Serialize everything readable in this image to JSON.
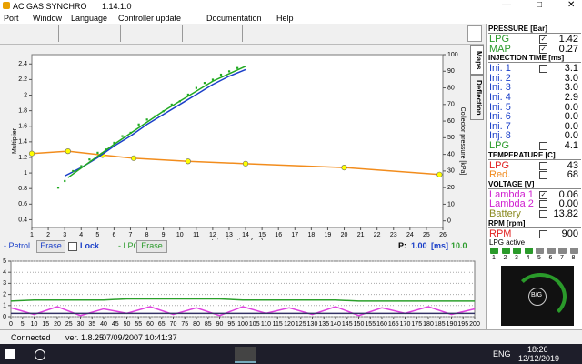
{
  "window": {
    "title": "AC GAS SYNCHRO",
    "version": "1.14.1.0"
  },
  "menu": [
    "Port",
    "Window",
    "Language",
    "Controller update",
    "Documentation",
    "Help"
  ],
  "tabs": [
    "Maps",
    "Deflection"
  ],
  "chart_data": [
    {
      "type": "line",
      "xlabel": "Injection time [ms]",
      "ylabel": "Multiplier",
      "y2label": "Collector pressure [kPa]",
      "xlim": [
        1,
        26
      ],
      "xticks": [
        1,
        2,
        3,
        4,
        5,
        6,
        7,
        8,
        9,
        10,
        11,
        12,
        13,
        14,
        15,
        16,
        17,
        18,
        19,
        20,
        21,
        22,
        23,
        24,
        25,
        26
      ],
      "ylim": [
        0.3,
        2.52
      ],
      "yticks": [
        0.4,
        0.6,
        0.8,
        1,
        1.2,
        1.4,
        1.6,
        1.8,
        2,
        2.2,
        2.4
      ],
      "y2lim": [
        -4,
        100
      ],
      "y2ticks": [
        0,
        10,
        20,
        30,
        40,
        50,
        60,
        70,
        80,
        90,
        100
      ],
      "grid": false,
      "series": [
        {
          "color": "#f28c1c",
          "marker": "#ffff00",
          "x": [
            1,
            3.2,
            5.3,
            7.2,
            10.5,
            14,
            20,
            25.8
          ],
          "values": [
            1.25,
            1.28,
            1.23,
            1.19,
            1.15,
            1.12,
            1.07,
            0.98
          ]
        },
        {
          "color": "#1a3fc8",
          "axis": "y2",
          "x": [
            3,
            4,
            5,
            6,
            7,
            8,
            9,
            10,
            11,
            12,
            13,
            14
          ],
          "values": [
            27,
            32,
            38,
            45,
            51,
            58,
            64,
            70,
            76,
            82,
            87,
            91
          ]
        },
        {
          "color": "#22aa22",
          "axis": "y2",
          "x": [
            3.2,
            6,
            9,
            12,
            14
          ],
          "values": [
            26,
            46,
            66,
            84,
            93
          ]
        },
        {
          "color": "#22aa22",
          "axis": "y2",
          "kind": "scatter",
          "x": [
            2.6,
            3,
            3.5,
            4,
            4.5,
            5,
            5.5,
            6,
            6.5,
            7,
            7.5,
            8,
            8.5,
            9,
            9.5,
            10,
            10.5,
            11,
            11.5,
            12,
            12.5,
            13,
            13.5
          ],
          "values": [
            20,
            24,
            30,
            33,
            37,
            41,
            43,
            47,
            51,
            53,
            58,
            61,
            63,
            66,
            70,
            72,
            76,
            80,
            83,
            85,
            88,
            90,
            92
          ]
        }
      ]
    },
    {
      "type": "line",
      "xlim": [
        0,
        200
      ],
      "xticks": [
        0,
        5,
        10,
        15,
        20,
        25,
        30,
        35,
        40,
        45,
        50,
        55,
        60,
        65,
        70,
        75,
        80,
        85,
        90,
        95,
        100,
        105,
        110,
        115,
        120,
        125,
        130,
        135,
        140,
        145,
        150,
        155,
        160,
        165,
        170,
        175,
        180,
        185,
        190,
        195,
        200
      ],
      "ylim": [
        0,
        5
      ],
      "yticks": [
        0,
        1,
        2,
        3,
        4,
        5
      ],
      "grid": true,
      "x": [
        0,
        10,
        20,
        30,
        40,
        50,
        60,
        70,
        80,
        90,
        100,
        110,
        120,
        130,
        140,
        150,
        160,
        170,
        180,
        190,
        200
      ],
      "series": [
        {
          "color": "#2ca02c",
          "values": [
            1.4,
            1.5,
            1.5,
            1.5,
            1.5,
            1.6,
            1.6,
            1.6,
            1.6,
            1.6,
            1.5,
            1.5,
            1.5,
            1.5,
            1.5,
            1.4,
            1.4,
            1.4,
            1.4,
            1.4,
            1.4
          ]
        },
        {
          "color": "#e040e0",
          "values": [
            0.8,
            0.2,
            0.9,
            0.1,
            0.7,
            0.3,
            0.9,
            0.2,
            0.8,
            0.1,
            0.9,
            0.3,
            0.8,
            0.2,
            0.9,
            0.1,
            0.8,
            0.3,
            0.9,
            0.2,
            0.7
          ]
        },
        {
          "color": "#333366",
          "values": [
            0.3,
            0.3,
            0.3,
            0.3,
            0.3,
            0.3,
            0.3,
            0.3,
            0.3,
            0.3,
            0.3,
            0.3,
            0.3,
            0.3,
            0.3,
            0.3,
            0.3,
            0.3,
            0.3,
            0.3,
            0.3
          ]
        }
      ]
    }
  ],
  "controls": {
    "petrol_label": "- Petrol",
    "erase_petrol": "Erase",
    "lock": "Lock",
    "lpg_label": "- LPG",
    "erase_lpg": "Erase",
    "p_label": "P:",
    "p_value": "1.00",
    "p_unit": "[ms]",
    "p_max": "10.0"
  },
  "status": {
    "state": "Connected",
    "version": "ver. 1.8.25",
    "date": "07/09/2007 10:41:37"
  },
  "panel": {
    "sections": [
      {
        "title": "PRESSURE [Bar]",
        "rows": [
          {
            "label": "LPG",
            "value": "1.42",
            "color": "#2a9a2a",
            "checked": true
          },
          {
            "label": "MAP",
            "value": "0.27",
            "color": "#2a9a2a",
            "checked": true
          }
        ]
      },
      {
        "title": "INJECTION TIME [ms]",
        "rows": [
          {
            "label": "Ini. 1",
            "value": "3.1",
            "color": "#1a3fc8",
            "checked": false
          },
          {
            "label": "Ini. 2",
            "value": "3.0",
            "color": "#1a3fc8"
          },
          {
            "label": "Ini. 3",
            "value": "3.0",
            "color": "#1a3fc8"
          },
          {
            "label": "Ini. 4",
            "value": "2.9",
            "color": "#1a3fc8"
          },
          {
            "label": "Ini. 5",
            "value": "0.0",
            "color": "#1a3fc8"
          },
          {
            "label": "Ini. 6",
            "value": "0.0",
            "color": "#1a3fc8"
          },
          {
            "label": "Ini. 7",
            "value": "0.0",
            "color": "#1a3fc8"
          },
          {
            "label": "Inj. 8",
            "value": "0.0",
            "color": "#1a3fc8"
          },
          {
            "label": "LPG",
            "value": "4.1",
            "color": "#2a9a2a",
            "checked": false
          }
        ]
      },
      {
        "title": "TEMPERATURE [C]",
        "rows": [
          {
            "label": "LPG",
            "value": "43",
            "color": "#e02020",
            "checked": false
          },
          {
            "label": "Red.",
            "value": "68",
            "color": "#f08a1c",
            "checked": false
          }
        ]
      },
      {
        "title": "VOLTAGE [V]",
        "rows": [
          {
            "label": "Lambda 1",
            "value": "0.06",
            "color": "#d020d0",
            "checked": true
          },
          {
            "label": "Lambda 2",
            "value": "0.00",
            "color": "#d020d0",
            "checked": false
          },
          {
            "label": "Battery",
            "value": "13.82",
            "color": "#8a8a20",
            "checked": false
          }
        ]
      },
      {
        "title": "RPM [rpm]",
        "rows": [
          {
            "label": "RPM",
            "value": "900",
            "color": "#e02020",
            "checked": false
          }
        ]
      }
    ],
    "lpg_active": {
      "title": "LPG active",
      "cylinders": [
        "1",
        "2",
        "3",
        "4",
        "5",
        "6",
        "7",
        "8"
      ]
    },
    "gauge_label": "B/G"
  },
  "taskbar": {
    "language": "ENG",
    "time": "18:26",
    "date": "12/12/2019"
  }
}
